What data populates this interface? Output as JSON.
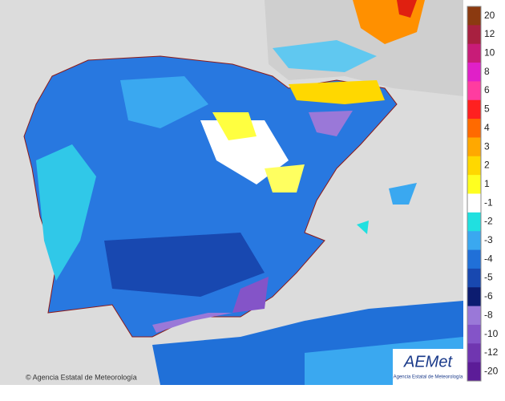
{
  "map": {
    "copyright": "© Agencia Estatal de Meteorología",
    "logo": {
      "name": "AEMet",
      "subtitle": "Agencia Estatal de Meteorología"
    },
    "legend": [
      {
        "label": "20",
        "color": "#8b3a10"
      },
      {
        "label": "12",
        "color": "#a82040"
      },
      {
        "label": "10",
        "color": "#c81c78"
      },
      {
        "label": "8",
        "color": "#e020c8"
      },
      {
        "label": "6",
        "color": "#ff3ca0"
      },
      {
        "label": "5",
        "color": "#ff2020"
      },
      {
        "label": "4",
        "color": "#ff6a00"
      },
      {
        "label": "3",
        "color": "#ffa800"
      },
      {
        "label": "2",
        "color": "#ffd800"
      },
      {
        "label": "1",
        "color": "#ffff20"
      },
      {
        "label": "-1",
        "color": "#ffffff"
      },
      {
        "label": "-2",
        "color": "#20e0e0"
      },
      {
        "label": "-3",
        "color": "#3aa8f0"
      },
      {
        "label": "-4",
        "color": "#2070d8"
      },
      {
        "label": "-5",
        "color": "#1848b0"
      },
      {
        "label": "-6",
        "color": "#0c1c70"
      },
      {
        "label": "-8",
        "color": "#9a78d8"
      },
      {
        "label": "-10",
        "color": "#8454c8"
      },
      {
        "label": "-12",
        "color": "#7036b0"
      },
      {
        "label": "-20",
        "color": "#5c1c98"
      }
    ]
  }
}
